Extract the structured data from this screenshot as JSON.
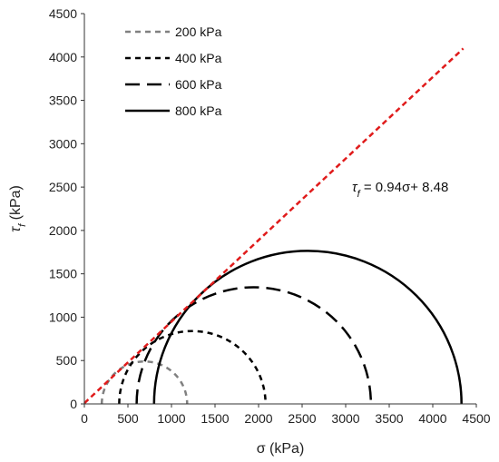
{
  "chart_data": {
    "type": "line",
    "xlabel": "σ (kPa)",
    "ylabel": {
      "symbol": "τ",
      "sub": "f",
      "unit": " (kPa)"
    },
    "xlim": [
      0,
      4500
    ],
    "ylim": [
      0,
      4500
    ],
    "x_ticks": [
      0,
      500,
      1000,
      1500,
      2000,
      2500,
      3000,
      3500,
      4000,
      4500
    ],
    "y_ticks": [
      0,
      500,
      1000,
      1500,
      2000,
      2500,
      3000,
      3500,
      4000,
      4500
    ],
    "grid": false,
    "legend_position": "top-left",
    "series": [
      {
        "name": "200 kPa",
        "sigma3": 200,
        "sigma1": 1180,
        "color": "#808080",
        "dash": "short"
      },
      {
        "name": "400 kPa",
        "sigma3": 400,
        "sigma1": 2080,
        "color": "#000000",
        "dash": "short"
      },
      {
        "name": "600 kPa",
        "sigma3": 600,
        "sigma1": 3290,
        "color": "#000000",
        "dash": "long"
      },
      {
        "name": "800 kPa",
        "sigma3": 800,
        "sigma1": 4330,
        "color": "#000000",
        "dash": "solid"
      }
    ],
    "failure_envelope": {
      "slope": 0.94,
      "intercept": 8.48,
      "x_range": [
        0,
        4350
      ],
      "color": "#e01b1b",
      "label": {
        "symbol": "τ",
        "sub": "f",
        "rest": " = 0.94σ+ 8.48"
      }
    }
  }
}
